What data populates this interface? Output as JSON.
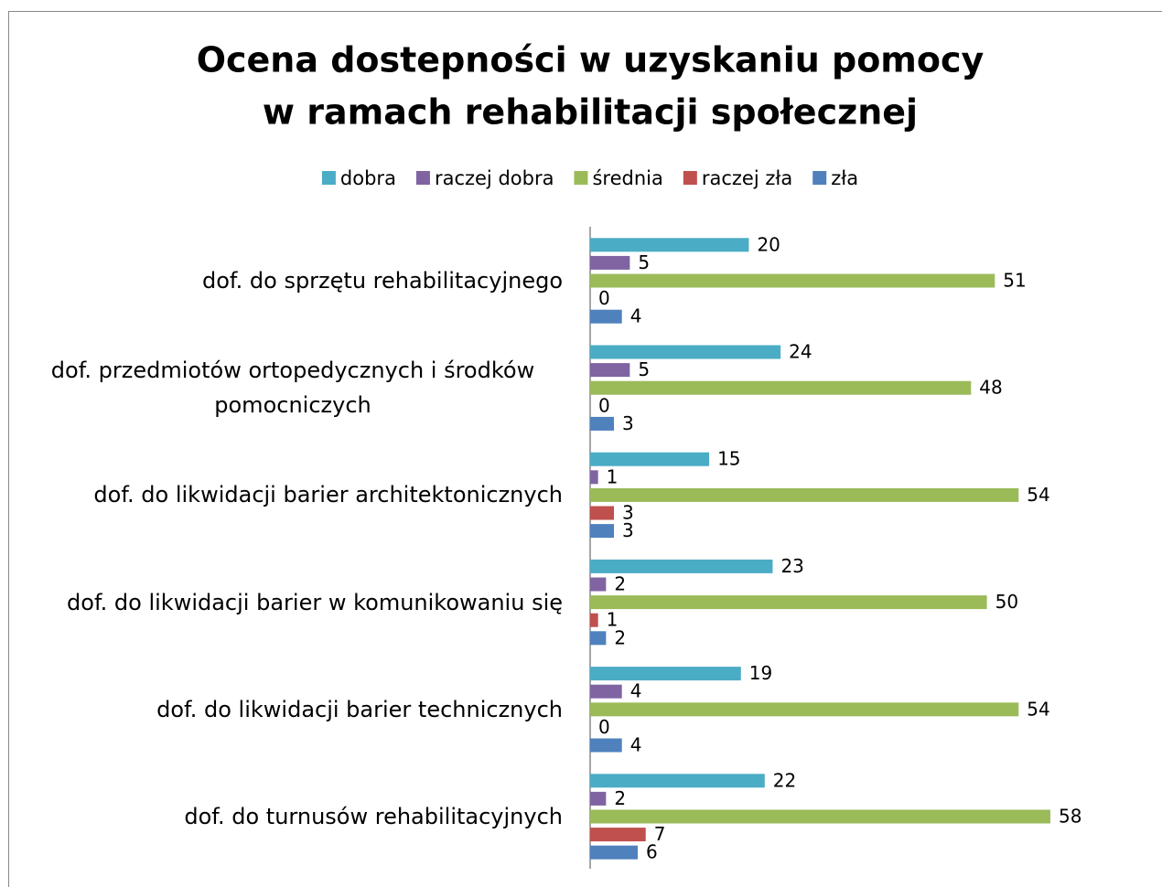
{
  "chart_data": {
    "type": "barh",
    "title": [
      "Ocena dostepności w uzyskaniu pomocy",
      "w ramach rehabilitacji społecznej"
    ],
    "categories": [
      "dof. do sprzętu rehabilitacyjnego",
      "dof. przedmiotów ortopedycznych i środków pomocniczych",
      "dof. do likwidacji barier architektonicznych",
      "dof. do likwidacji barier w komunikowaniu się",
      "dof. do likwidacji barier technicznych",
      "dof. do turnusów rehabilitacyjnych"
    ],
    "series": [
      {
        "name": "dobra",
        "color": "#4bacc6",
        "values": [
          20,
          24,
          15,
          23,
          19,
          22
        ]
      },
      {
        "name": "raczej dobra",
        "color": "#8064a2",
        "values": [
          5,
          5,
          1,
          2,
          4,
          2
        ]
      },
      {
        "name": "średnia",
        "color": "#9bbb59",
        "values": [
          51,
          48,
          54,
          50,
          54,
          58
        ]
      },
      {
        "name": "raczej zła",
        "color": "#c0504d",
        "values": [
          0,
          0,
          3,
          1,
          0,
          7
        ]
      },
      {
        "name": "zła",
        "color": "#4f81bd",
        "values": [
          4,
          3,
          3,
          2,
          4,
          6
        ]
      }
    ],
    "legend": "top"
  }
}
